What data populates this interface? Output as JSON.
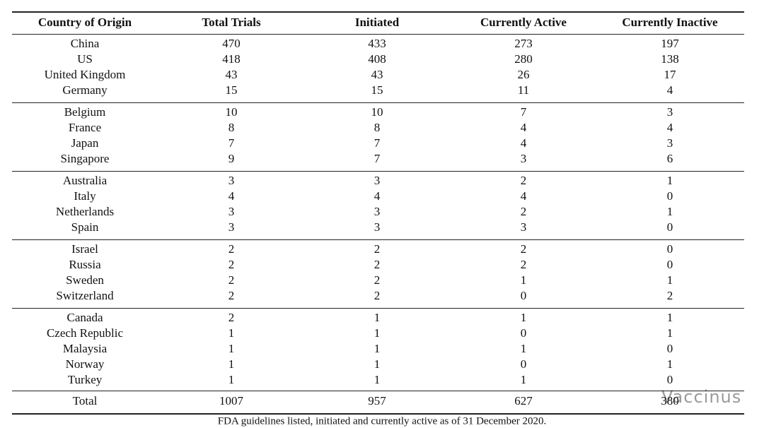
{
  "table": {
    "headers": [
      "Country of Origin",
      "Total Trials",
      "Initiated",
      "Currently Active",
      "Currently Inactive"
    ],
    "groups": [
      [
        [
          "China",
          470,
          433,
          273,
          197
        ],
        [
          "US",
          418,
          408,
          280,
          138
        ],
        [
          "United Kingdom",
          43,
          43,
          26,
          17
        ],
        [
          "Germany",
          15,
          15,
          11,
          4
        ]
      ],
      [
        [
          "Belgium",
          10,
          10,
          7,
          3
        ],
        [
          "France",
          8,
          8,
          4,
          4
        ],
        [
          "Japan",
          7,
          7,
          4,
          3
        ],
        [
          "Singapore",
          9,
          7,
          3,
          6
        ]
      ],
      [
        [
          "Australia",
          3,
          3,
          2,
          1
        ],
        [
          "Italy",
          4,
          4,
          4,
          0
        ],
        [
          "Netherlands",
          3,
          3,
          2,
          1
        ],
        [
          "Spain",
          3,
          3,
          3,
          0
        ]
      ],
      [
        [
          "Israel",
          2,
          2,
          2,
          0
        ],
        [
          "Russia",
          2,
          2,
          2,
          0
        ],
        [
          "Sweden",
          2,
          2,
          1,
          1
        ],
        [
          "Switzerland",
          2,
          2,
          0,
          2
        ]
      ],
      [
        [
          "Canada",
          2,
          1,
          1,
          1
        ],
        [
          "Czech Republic",
          1,
          1,
          0,
          1
        ],
        [
          "Malaysia",
          1,
          1,
          1,
          0
        ],
        [
          "Norway",
          1,
          1,
          0,
          1
        ],
        [
          "Turkey",
          1,
          1,
          1,
          0
        ]
      ]
    ],
    "total": [
      "Total",
      1007,
      957,
      627,
      380
    ]
  },
  "caption": "FDA guidelines listed, initiated and currently active as of 31 December 2020.",
  "watermark": "Vaccinus"
}
